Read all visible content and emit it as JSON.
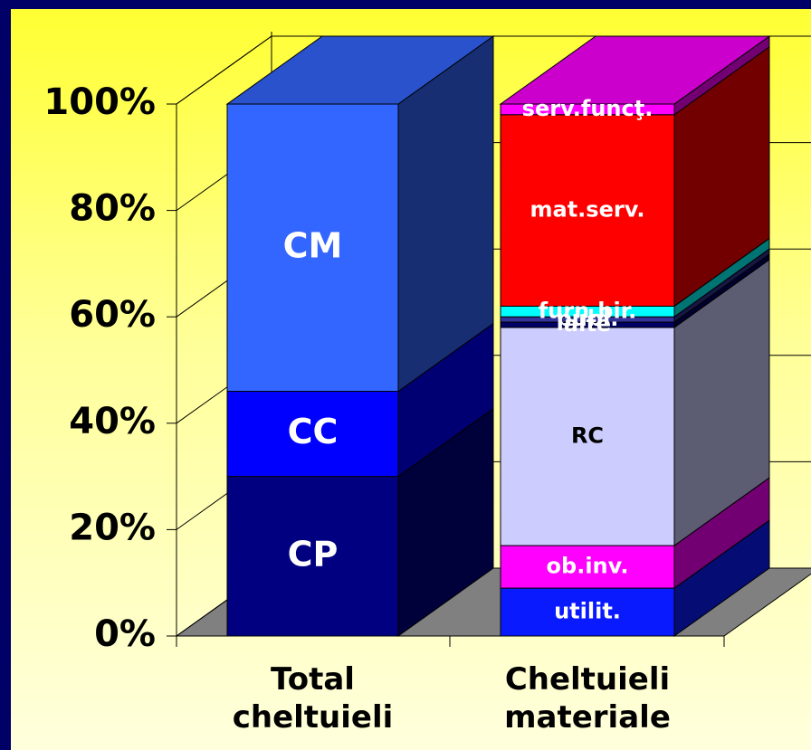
{
  "chart_data": {
    "type": "stacked_bar_3d",
    "ylim": [
      0,
      100
    ],
    "yticks": [
      {
        "value": 0,
        "label": "0%"
      },
      {
        "value": 20,
        "label": "20%"
      },
      {
        "value": 40,
        "label": "40%"
      },
      {
        "value": 60,
        "label": "60%"
      },
      {
        "value": 80,
        "label": "80%"
      },
      {
        "value": 100,
        "label": "100%"
      }
    ],
    "grid": true,
    "bars": [
      {
        "category": "Total cheltuieli",
        "segments": [
          {
            "name": "CP",
            "value": 30,
            "color": "#000080"
          },
          {
            "name": "CC",
            "value": 16,
            "color": "#0000ff"
          },
          {
            "name": "CM",
            "value": 54,
            "color": "#3366ff"
          }
        ]
      },
      {
        "category": "Cheltuieli materiale",
        "segments": [
          {
            "name": "utilit.",
            "value": 9,
            "color": "#0a1aff"
          },
          {
            "name": "ob.inv.",
            "value": 8,
            "color": "#ff00ff"
          },
          {
            "name": "RC",
            "value": 41,
            "color": "#ccccff"
          },
          {
            "name": "alte",
            "value": 1,
            "color": "#000066"
          },
          {
            "name": "publ.",
            "value": 1,
            "color": "#333399"
          },
          {
            "name": "furn.bir.",
            "value": 2,
            "color": "#00ffff"
          },
          {
            "name": "mat.serv.",
            "value": 36,
            "color": "#ff0000"
          },
          {
            "name": "serv.funcţ.",
            "value": 2,
            "color": "#ff00ff"
          }
        ]
      }
    ]
  }
}
